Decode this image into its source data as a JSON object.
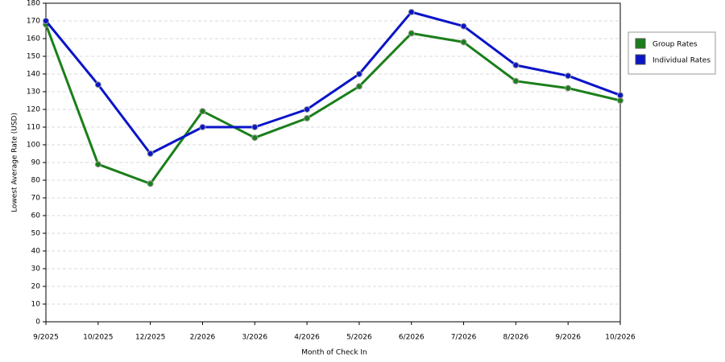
{
  "chart_data": {
    "type": "line",
    "x_label": "Month of Check In",
    "y_label": "Lowest Average Rate (USD)",
    "categories": [
      "9/2025",
      "10/2025",
      "12/2025",
      "2/2026",
      "3/2026",
      "4/2026",
      "5/2026",
      "6/2026",
      "7/2026",
      "8/2026",
      "9/2026",
      "10/2026"
    ],
    "series": [
      {
        "name": "Group Rates",
        "color": "#1a7f1a",
        "values": [
          168,
          89,
          78,
          119,
          104,
          115,
          133,
          163,
          158,
          136,
          132,
          125
        ]
      },
      {
        "name": "Individual Rates",
        "color": "#0a14c8",
        "values": [
          170,
          134,
          95,
          110,
          110,
          120,
          140,
          175,
          167,
          145,
          139,
          128
        ]
      }
    ],
    "ylim": [
      0,
      180
    ],
    "yticks": [
      0,
      10,
      20,
      30,
      40,
      50,
      60,
      70,
      80,
      90,
      100,
      110,
      120,
      130,
      140,
      150,
      160,
      170,
      180
    ],
    "grid": true,
    "legend": "right"
  }
}
